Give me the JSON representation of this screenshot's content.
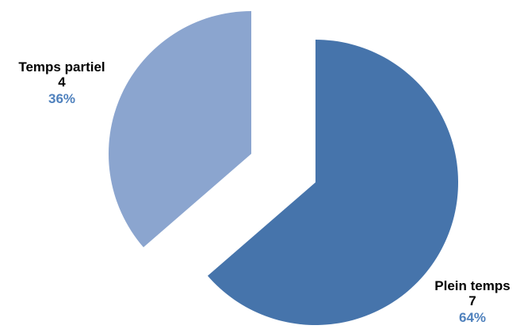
{
  "chart_data": {
    "type": "pie",
    "exploded": true,
    "slices": [
      {
        "label": "Plein temps",
        "value": 7,
        "percent": "64%",
        "color": "#4674AB"
      },
      {
        "label": "Temps partiel",
        "value": 4,
        "percent": "36%",
        "color": "#8BA5CF"
      }
    ],
    "percent_color": "#4F81BD"
  }
}
